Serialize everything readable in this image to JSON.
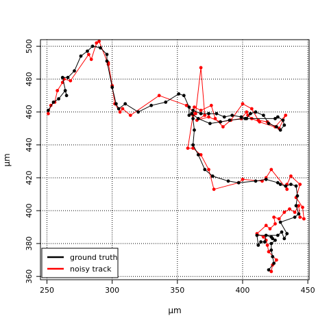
{
  "chart_data": {
    "type": "line",
    "title": "",
    "xlabel": "µm",
    "ylabel": "µm",
    "xlim": [
      245,
      451
    ],
    "ylim": [
      358,
      504
    ],
    "x_ticks": [
      250,
      300,
      350,
      400,
      450
    ],
    "y_ticks": [
      360,
      380,
      400,
      420,
      440,
      460,
      480,
      500
    ],
    "grid": true,
    "legend_position": "bottom-left",
    "series": [
      {
        "name": "ground truth",
        "color": "#000000",
        "points": [
          [
            420,
            364
          ],
          [
            424,
            368
          ],
          [
            423,
            372
          ],
          [
            422,
            376
          ],
          [
            422,
            380
          ],
          [
            425,
            382
          ],
          [
            423,
            383
          ],
          [
            422,
            384
          ],
          [
            418,
            385
          ],
          [
            417,
            381
          ],
          [
            414,
            381
          ],
          [
            412,
            379
          ],
          [
            411,
            385
          ],
          [
            427,
            385
          ],
          [
            430,
            387
          ],
          [
            432,
            383
          ],
          [
            434,
            386
          ],
          [
            429,
            393
          ],
          [
            440,
            396
          ],
          [
            443,
            398
          ],
          [
            441,
            403
          ],
          [
            442,
            409
          ],
          [
            441,
            415
          ],
          [
            437,
            416
          ],
          [
            433,
            415
          ],
          [
            429,
            416
          ],
          [
            427,
            417
          ],
          [
            418,
            419
          ],
          [
            410,
            418
          ],
          [
            397,
            417
          ],
          [
            389,
            418
          ],
          [
            377,
            421
          ],
          [
            371,
            425
          ],
          [
            366,
            434
          ],
          [
            362,
            440
          ],
          [
            363,
            449
          ],
          [
            362,
            456
          ],
          [
            362,
            461
          ],
          [
            368,
            459
          ],
          [
            374,
            459
          ],
          [
            380,
            459
          ],
          [
            386,
            457
          ],
          [
            392,
            458
          ],
          [
            399,
            457
          ],
          [
            403,
            456
          ],
          [
            406,
            459
          ],
          [
            410,
            460
          ],
          [
            416,
            458
          ],
          [
            420,
            453
          ],
          [
            426,
            451
          ],
          [
            429,
            449
          ],
          [
            432,
            452
          ],
          [
            431,
            455
          ],
          [
            427,
            457
          ],
          [
            425,
            456
          ],
          [
            402,
            456
          ],
          [
            390,
            455
          ],
          [
            383,
            454
          ],
          [
            375,
            453
          ],
          [
            366,
            456
          ],
          [
            361,
            459
          ],
          [
            359,
            458
          ],
          [
            359,
            463
          ],
          [
            355,
            470
          ],
          [
            351,
            471
          ],
          [
            341,
            466
          ],
          [
            330,
            464
          ],
          [
            320,
            460
          ],
          [
            310,
            465
          ],
          [
            305,
            462
          ],
          [
            303,
            465
          ],
          [
            300,
            475
          ],
          [
            296,
            491
          ],
          [
            296,
            495
          ],
          [
            291,
            499
          ],
          [
            285,
            500
          ],
          [
            281,
            497
          ],
          [
            276,
            494
          ],
          [
            271,
            485
          ],
          [
            266,
            481
          ],
          [
            262,
            481
          ],
          [
            265,
            470
          ],
          [
            264,
            473
          ],
          [
            259,
            468
          ],
          [
            255,
            466
          ],
          [
            251,
            461
          ]
        ]
      },
      {
        "name": "noisy track",
        "color": "#ff0000",
        "points": [
          [
            422,
            363
          ],
          [
            423,
            367
          ],
          [
            426,
            370
          ],
          [
            420,
            375
          ],
          [
            419,
            379
          ],
          [
            418,
            382
          ],
          [
            416,
            384
          ],
          [
            411,
            386
          ],
          [
            418,
            391
          ],
          [
            421,
            389
          ],
          [
            425,
            392
          ],
          [
            424,
            396
          ],
          [
            428,
            395
          ],
          [
            432,
            399
          ],
          [
            436,
            401
          ],
          [
            440,
            399
          ],
          [
            443,
            403
          ],
          [
            444,
            396
          ],
          [
            447,
            395
          ],
          [
            446,
            402
          ],
          [
            441,
            408
          ],
          [
            444,
            416
          ],
          [
            437,
            421
          ],
          [
            434,
            416
          ],
          [
            434,
            413
          ],
          [
            422,
            425
          ],
          [
            418,
            420
          ],
          [
            415,
            418
          ],
          [
            400,
            419
          ],
          [
            397,
            417
          ],
          [
            378,
            413
          ],
          [
            374,
            425
          ],
          [
            368,
            434
          ],
          [
            362,
            438
          ],
          [
            358,
            438
          ],
          [
            362,
            458
          ],
          [
            363,
            463
          ],
          [
            368,
            461
          ],
          [
            376,
            464
          ],
          [
            379,
            456
          ],
          [
            385,
            451
          ],
          [
            391,
            455
          ],
          [
            400,
            465
          ],
          [
            407,
            462
          ],
          [
            412,
            455
          ],
          [
            419,
            454
          ],
          [
            425,
            451
          ],
          [
            433,
            458
          ],
          [
            428,
            450
          ],
          [
            413,
            454
          ],
          [
            407,
            456
          ],
          [
            404,
            458
          ],
          [
            403,
            460
          ],
          [
            399,
            456
          ],
          [
            383,
            454
          ],
          [
            374,
            457
          ],
          [
            365,
            455
          ],
          [
            371,
            458
          ],
          [
            368,
            487
          ],
          [
            364,
            459
          ],
          [
            357,
            464
          ],
          [
            336,
            470
          ],
          [
            314,
            458
          ],
          [
            308,
            462
          ],
          [
            306,
            460
          ],
          [
            302,
            465
          ],
          [
            300,
            476
          ],
          [
            297,
            490
          ],
          [
            297,
            489
          ],
          [
            290,
            503
          ],
          [
            288,
            502
          ],
          [
            284,
            492
          ],
          [
            282,
            495
          ],
          [
            268,
            479
          ],
          [
            263,
            480
          ],
          [
            262,
            478
          ],
          [
            258,
            473
          ],
          [
            256,
            466
          ],
          [
            253,
            464
          ],
          [
            251,
            459
          ]
        ]
      }
    ]
  }
}
